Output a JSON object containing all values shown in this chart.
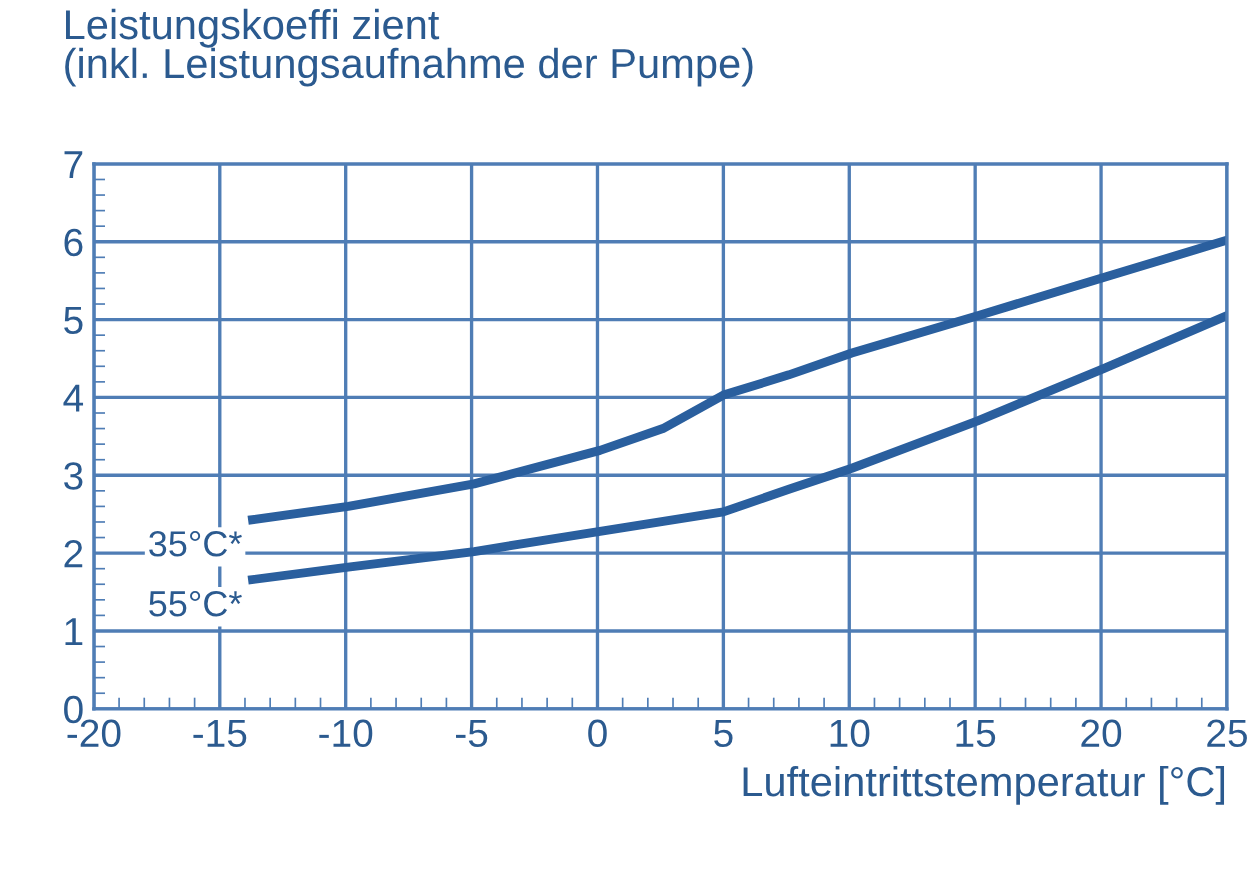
{
  "chart_data": {
    "type": "line",
    "ylabel": "Leistungskoeffi zient\n(inkl. Leistungsaufnahme der Pumpe)",
    "xlabel": "Lufteintrittstemperatur [°C]",
    "xlim": [
      -20,
      25
    ],
    "xticks": [
      -20,
      -15,
      -10,
      -5,
      0,
      5,
      10,
      15,
      20,
      25
    ],
    "ylim": [
      0,
      7
    ],
    "yticks": [
      0,
      1,
      2,
      3,
      4,
      5,
      6,
      7
    ],
    "grid": true,
    "legend": false,
    "marker": "none",
    "line_style": "solid",
    "series": [
      {
        "name": "35°C*",
        "color": "#2a5f9e",
        "x": [
          -13.7,
          -9.9,
          -4.9,
          0.1,
          2.6,
          5,
          7.6,
          10.1,
          15.1,
          20.1,
          25
        ],
        "values": [
          2.43,
          2.6,
          2.89,
          3.32,
          3.6,
          4.03,
          4.29,
          4.57,
          5.05,
          5.54,
          6.02
        ]
      },
      {
        "name": "55°C*",
        "color": "#2a5f9e",
        "x": [
          -13.7,
          -9.9,
          -4.9,
          0.1,
          5,
          7.6,
          10.1,
          15.1,
          20.1,
          25
        ],
        "values": [
          1.66,
          1.82,
          2.02,
          2.28,
          2.53,
          2.82,
          3.09,
          3.7,
          4.37,
          5.05
        ]
      }
    ]
  }
}
